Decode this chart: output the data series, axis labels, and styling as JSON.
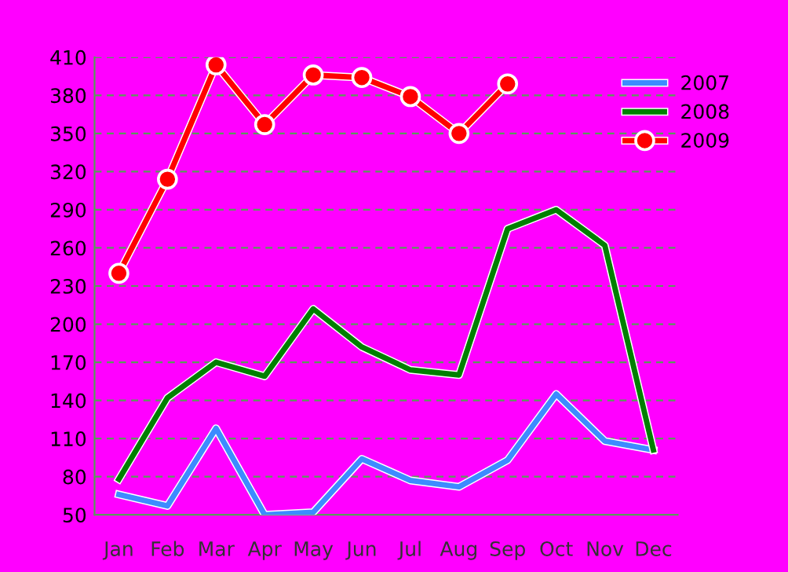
{
  "chart_data": {
    "type": "line",
    "categories": [
      "Jan",
      "Feb",
      "Mar",
      "Apr",
      "May",
      "Jun",
      "Jul",
      "Aug",
      "Sep",
      "Oct",
      "Nov",
      "Dec"
    ],
    "series": [
      {
        "name": "2007",
        "color": "#3d8bff",
        "values": [
          66,
          57,
          118,
          50,
          52,
          94,
          77,
          72,
          93,
          145,
          108,
          101
        ]
      },
      {
        "name": "2008",
        "color": "#008000",
        "values": [
          78,
          142,
          170,
          159,
          212,
          182,
          164,
          160,
          275,
          290,
          262,
          101
        ]
      },
      {
        "name": "2009",
        "color": "#ff0000",
        "marker": "circle",
        "values": [
          240,
          314,
          404,
          357,
          396,
          394,
          379,
          350,
          389,
          null,
          null,
          null
        ]
      }
    ],
    "ylim": [
      50,
      410
    ],
    "yticks": [
      50,
      80,
      110,
      140,
      170,
      200,
      230,
      260,
      290,
      320,
      350,
      380,
      410
    ],
    "grid": "y",
    "legend": "top right"
  }
}
